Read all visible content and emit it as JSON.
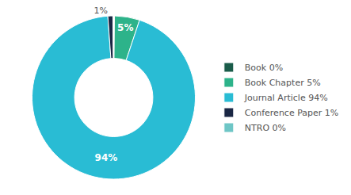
{
  "chart_data": {
    "type": "pie",
    "categories": [
      "Book 0%",
      "Book Chapter 5%",
      "Journal Article 94%",
      "Conference Paper 1%",
      "NTRO 0%"
    ],
    "values": [
      0.15,
      5,
      94,
      1,
      0.15
    ],
    "value_labels": [
      null,
      "5%",
      "94%",
      "1%",
      null
    ],
    "colors": [
      "#1a5c4a",
      "#2db38a",
      "#29bcd4",
      "#1a2744",
      "#6ec6c6"
    ],
    "legend": "right"
  }
}
